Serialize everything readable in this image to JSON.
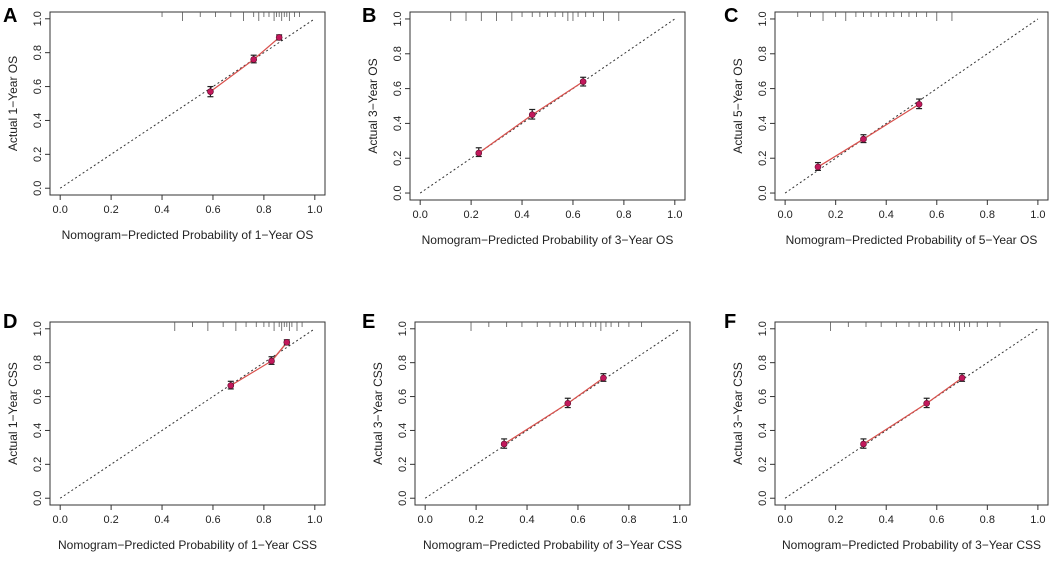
{
  "figure": {
    "colors": {
      "axis": "#333333",
      "ideal_line": "#333333",
      "calibration_line": "#d9534f",
      "point_fill": "#c2185b",
      "error_bar": "#222222",
      "rug": "#555555"
    }
  },
  "chart_data": [
    {
      "panel": "A",
      "type": "scatter",
      "xlabel": "Nomogram−Predicted Probability of 1−Year OS",
      "ylabel": "Actual 1−Year OS",
      "xlim": [
        0,
        1
      ],
      "ylim": [
        0,
        1
      ],
      "x_ticks": [
        "0.0",
        "0.2",
        "0.4",
        "0.6",
        "0.8",
        "1.0"
      ],
      "y_ticks": [
        "0.0",
        "0.2",
        "0.4",
        "0.6",
        "0.8",
        "1.0"
      ],
      "ideal_line": [
        [
          0,
          0
        ],
        [
          1,
          1
        ]
      ],
      "series": [
        {
          "name": "calibration",
          "x": [
            0.59,
            0.76,
            0.86
          ],
          "y": [
            0.57,
            0.76,
            0.89
          ],
          "err_low": [
            0.54,
            0.74,
            0.875
          ],
          "err_high": [
            0.6,
            0.785,
            0.905
          ]
        }
      ],
      "rug": [
        0.4,
        0.48,
        0.55,
        0.61,
        0.67,
        0.72,
        0.76,
        0.78,
        0.8,
        0.82,
        0.84,
        0.85,
        0.86,
        0.87,
        0.88,
        0.89,
        0.9,
        0.92,
        0.94
      ]
    },
    {
      "panel": "B",
      "type": "scatter",
      "xlabel": "Nomogram−Predicted Probability of 3−Year OS",
      "ylabel": "Actual 3−Year OS",
      "xlim": [
        0,
        1
      ],
      "ylim": [
        0,
        1
      ],
      "x_ticks": [
        "0.0",
        "0.2",
        "0.4",
        "0.6",
        "0.8",
        "1.0"
      ],
      "y_ticks": [
        "0.0",
        "0.2",
        "0.4",
        "0.6",
        "0.8",
        "1.0"
      ],
      "ideal_line": [
        [
          0,
          0
        ],
        [
          1,
          1
        ]
      ],
      "series": [
        {
          "name": "calibration",
          "x": [
            0.23,
            0.44,
            0.64
          ],
          "y": [
            0.23,
            0.45,
            0.64
          ],
          "err_low": [
            0.21,
            0.425,
            0.615
          ],
          "err_high": [
            0.26,
            0.48,
            0.665
          ]
        }
      ],
      "rug": [
        0.12,
        0.18,
        0.24,
        0.3,
        0.36,
        0.4,
        0.44,
        0.47,
        0.5,
        0.53,
        0.56,
        0.58,
        0.6,
        0.62,
        0.65,
        0.68,
        0.72,
        0.78
      ]
    },
    {
      "panel": "C",
      "type": "scatter",
      "xlabel": "Nomogram−Predicted Probability of 5−Year OS",
      "ylabel": "Actual 5−Year OS",
      "xlim": [
        0,
        1
      ],
      "ylim": [
        0,
        1
      ],
      "x_ticks": [
        "0.0",
        "0.2",
        "0.4",
        "0.6",
        "0.8",
        "1.0"
      ],
      "y_ticks": [
        "0.0",
        "0.2",
        "0.4",
        "0.6",
        "0.8",
        "1.0"
      ],
      "ideal_line": [
        [
          0,
          0
        ],
        [
          1,
          1
        ]
      ],
      "series": [
        {
          "name": "calibration",
          "x": [
            0.13,
            0.31,
            0.53
          ],
          "y": [
            0.15,
            0.31,
            0.51
          ],
          "err_low": [
            0.13,
            0.29,
            0.485
          ],
          "err_high": [
            0.175,
            0.335,
            0.54
          ]
        }
      ],
      "rug": [
        0.05,
        0.1,
        0.15,
        0.2,
        0.24,
        0.28,
        0.31,
        0.34,
        0.37,
        0.4,
        0.43,
        0.46,
        0.49,
        0.52,
        0.56,
        0.6,
        0.66
      ]
    },
    {
      "panel": "D",
      "type": "scatter",
      "xlabel": "Nomogram−Predicted Probability of 1−Year CSS",
      "ylabel": "Actual 1−Year CSS",
      "xlim": [
        0,
        1
      ],
      "ylim": [
        0,
        1
      ],
      "x_ticks": [
        "0.0",
        "0.2",
        "0.4",
        "0.6",
        "0.8",
        "1.0"
      ],
      "y_ticks": [
        "0.0",
        "0.2",
        "0.4",
        "0.6",
        "0.8",
        "1.0"
      ],
      "ideal_line": [
        [
          0,
          0
        ],
        [
          1,
          1
        ]
      ],
      "series": [
        {
          "name": "calibration",
          "x": [
            0.67,
            0.83,
            0.89
          ],
          "y": [
            0.665,
            0.81,
            0.92
          ],
          "err_low": [
            0.645,
            0.79,
            0.905
          ],
          "err_high": [
            0.69,
            0.835,
            0.935
          ]
        }
      ],
      "rug": [
        0.45,
        0.52,
        0.58,
        0.64,
        0.69,
        0.73,
        0.77,
        0.8,
        0.82,
        0.84,
        0.86,
        0.87,
        0.88,
        0.89,
        0.9,
        0.91,
        0.93,
        0.95
      ]
    },
    {
      "panel": "E",
      "type": "scatter",
      "xlabel": "Nomogram−Predicted Probability of 3−Year CSS",
      "ylabel": "Actual 3−Year CSS",
      "xlim": [
        0,
        1
      ],
      "ylim": [
        0,
        1
      ],
      "x_ticks": [
        "0.0",
        "0.2",
        "0.4",
        "0.6",
        "0.8",
        "1.0"
      ],
      "y_ticks": [
        "0.0",
        "0.2",
        "0.4",
        "0.6",
        "0.8",
        "1.0"
      ],
      "ideal_line": [
        [
          0,
          0
        ],
        [
          1,
          1
        ]
      ],
      "series": [
        {
          "name": "calibration",
          "x": [
            0.31,
            0.56,
            0.7
          ],
          "y": [
            0.32,
            0.56,
            0.71
          ],
          "err_low": [
            0.295,
            0.535,
            0.69
          ],
          "err_high": [
            0.35,
            0.59,
            0.735
          ]
        }
      ],
      "rug": [
        0.18,
        0.25,
        0.32,
        0.38,
        0.44,
        0.49,
        0.53,
        0.56,
        0.59,
        0.62,
        0.65,
        0.67,
        0.69,
        0.71,
        0.73,
        0.76,
        0.8,
        0.85
      ]
    },
    {
      "panel": "F",
      "type": "scatter",
      "xlabel": "Nomogram−Predicted Probability of 3−Year CSS",
      "ylabel": "Actual 3−Year CSS",
      "xlim": [
        0,
        1
      ],
      "ylim": [
        0,
        1
      ],
      "x_ticks": [
        "0.0",
        "0.2",
        "0.4",
        "0.6",
        "0.8",
        "1.0"
      ],
      "y_ticks": [
        "0.0",
        "0.2",
        "0.4",
        "0.6",
        "0.8",
        "1.0"
      ],
      "ideal_line": [
        [
          0,
          0
        ],
        [
          1,
          1
        ]
      ],
      "series": [
        {
          "name": "calibration",
          "x": [
            0.31,
            0.56,
            0.7
          ],
          "y": [
            0.32,
            0.56,
            0.71
          ],
          "err_low": [
            0.295,
            0.535,
            0.69
          ],
          "err_high": [
            0.35,
            0.59,
            0.735
          ]
        }
      ],
      "rug": [
        0.18,
        0.25,
        0.32,
        0.38,
        0.44,
        0.49,
        0.53,
        0.56,
        0.59,
        0.62,
        0.65,
        0.67,
        0.69,
        0.71,
        0.73,
        0.76,
        0.8,
        0.85
      ]
    }
  ]
}
